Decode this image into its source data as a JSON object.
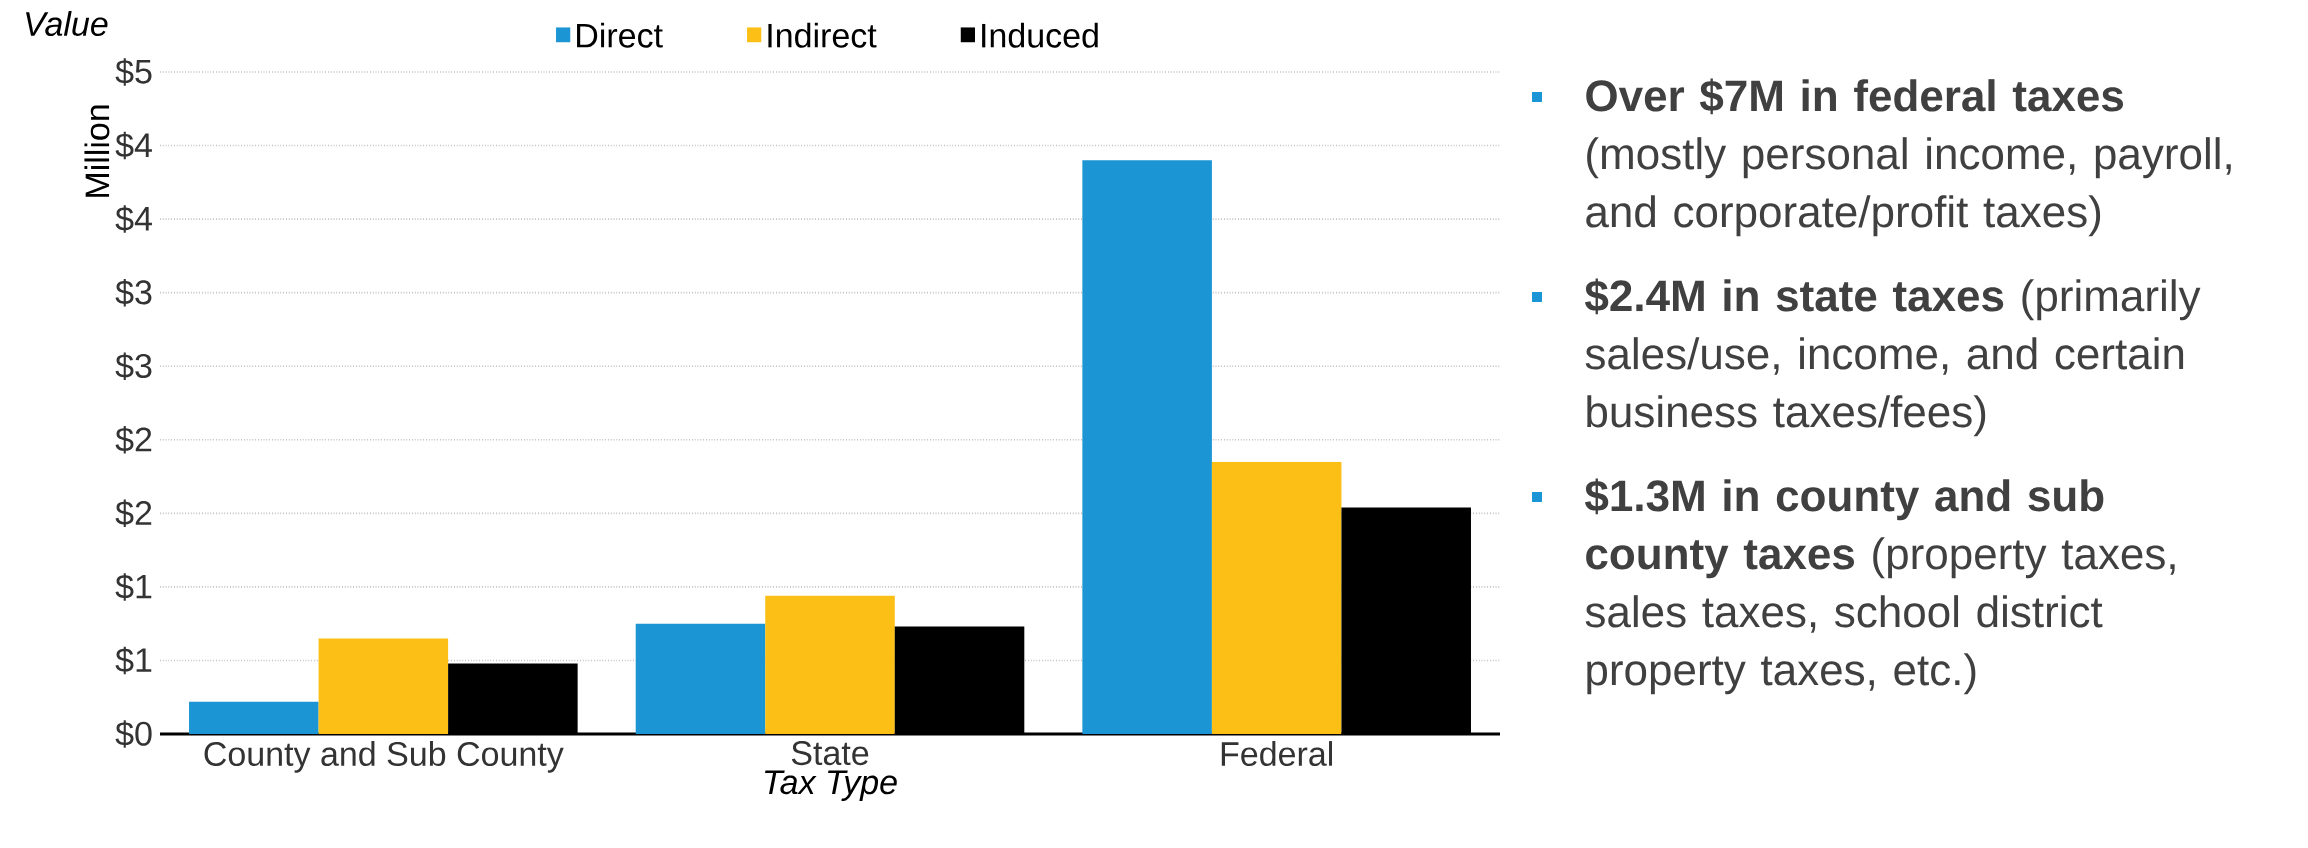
{
  "chart_data": {
    "type": "bar",
    "xlabel": "Tax Type",
    "ylabel": "Million",
    "categories": [
      "County and Sub County",
      "State",
      "Federal"
    ],
    "series": [
      {
        "name": "Direct",
        "color": "#1b95d3",
        "values": [
          0.22,
          0.75,
          3.9
        ]
      },
      {
        "name": "Indirect",
        "color": "#fbbf15",
        "values": [
          0.65,
          0.94,
          1.85
        ]
      },
      {
        "name": "Induced",
        "color": "#000000",
        "values": [
          0.48,
          0.73,
          1.54
        ]
      }
    ],
    "ylim": [
      0,
      4.5
    ],
    "yticks": [
      {
        "value": 0,
        "label": "$0"
      },
      {
        "value": 0.5,
        "label": "$1"
      },
      {
        "value": 1,
        "label": "$1"
      },
      {
        "value": 1.5,
        "label": "$2"
      },
      {
        "value": 2,
        "label": "$2"
      },
      {
        "value": 2.5,
        "label": "$3"
      },
      {
        "value": 3,
        "label": "$3"
      },
      {
        "value": 3.5,
        "label": "$4"
      },
      {
        "value": 4,
        "label": "$4"
      },
      {
        "value": 4.5,
        "label": "$5"
      }
    ],
    "grid": "y",
    "legend": "top",
    "annotations": [
      "Value",
      "**Over $7M in federal taxes** (mostly personal income, payroll, and corporate/profit taxes)",
      "**$2.4M in state taxes** (primarily sales/use, income, and certain business taxes/fees)",
      "**$1.3M in county and sub county taxes** (property taxes, sales taxes, school district property taxes, etc.)"
    ]
  }
}
